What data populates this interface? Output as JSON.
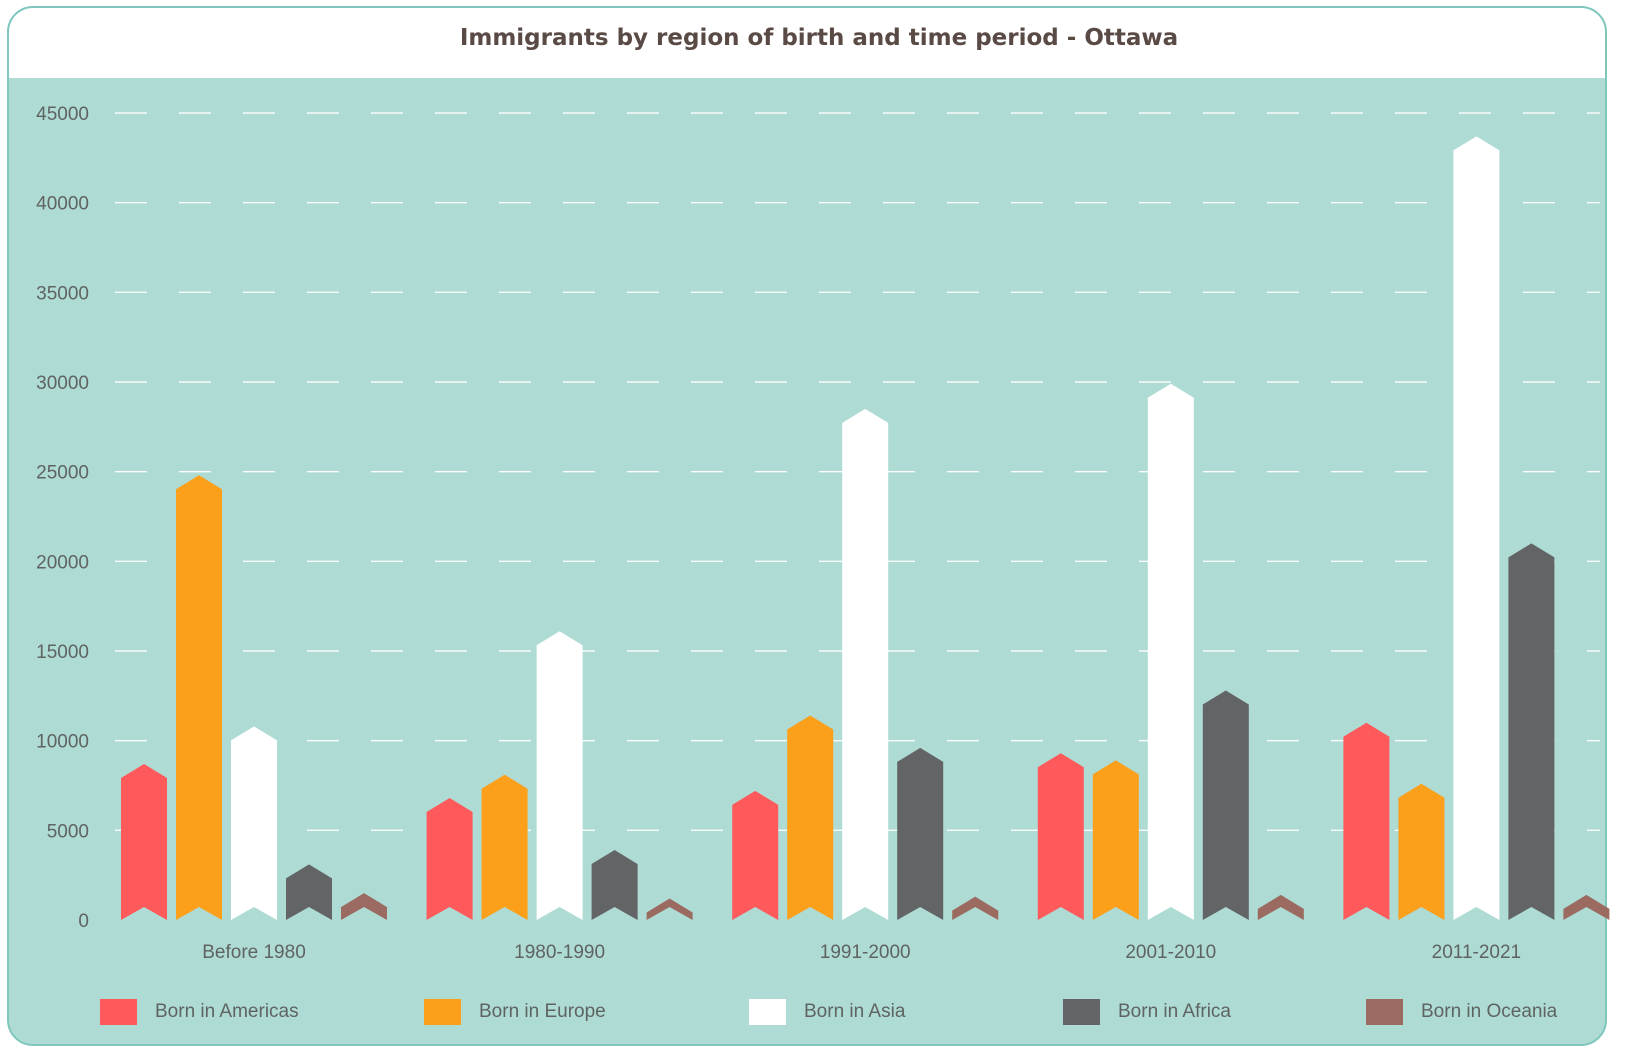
{
  "chart_data": {
    "type": "bar",
    "title": "Immigrants by region of birth and time period  - Ottawa",
    "categories": [
      "Before 1980",
      "1980-1990",
      "1991-2000",
      "2001-2010",
      "2011-2021"
    ],
    "series": [
      {
        "name": "Born in Americas",
        "color": "#fe5a5c",
        "values": [
          8700,
          6800,
          7200,
          9300,
          11000
        ]
      },
      {
        "name": "Born in Europe",
        "color": "#fc9f1a",
        "values": [
          24800,
          8100,
          11400,
          8900,
          7600
        ]
      },
      {
        "name": "Born in Asia",
        "color": "#ffffff",
        "values": [
          10800,
          16100,
          28500,
          29900,
          43700
        ]
      },
      {
        "name": "Born in Africa",
        "color": "#636466",
        "values": [
          3100,
          3900,
          9600,
          12800,
          21000
        ]
      },
      {
        "name": "Born in Oceania",
        "color": "#9b6a60",
        "values": [
          1500,
          1200,
          1300,
          1400,
          1400
        ]
      }
    ],
    "yticks": [
      "0",
      "5000",
      "10000",
      "15000",
      "20000",
      "25000",
      "30000",
      "35000",
      "40000",
      "45000"
    ],
    "ylim": [
      0,
      45000
    ],
    "grid": "dashed horizontal",
    "legend": "bottom",
    "background": "#aedbd4"
  }
}
